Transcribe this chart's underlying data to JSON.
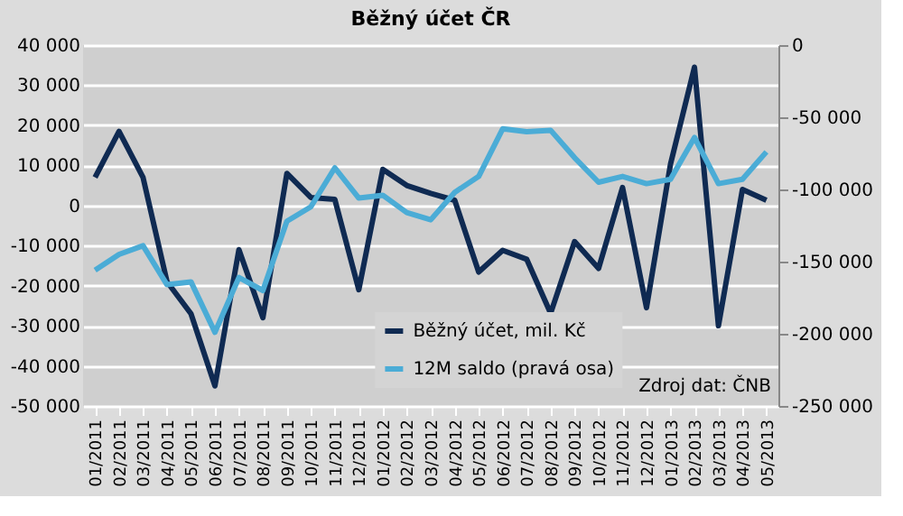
{
  "chart_data": {
    "type": "line",
    "title": "Běžný účet ČR",
    "categories": [
      "01/2011",
      "02/2011",
      "03/2011",
      "04/2011",
      "05/2011",
      "06/2011",
      "07/2011",
      "08/2011",
      "09/2011",
      "10/2011",
      "11/2011",
      "12/2011",
      "01/2012",
      "02/2012",
      "03/2012",
      "04/2012",
      "05/2012",
      "06/2012",
      "07/2012",
      "08/2012",
      "09/2012",
      "10/2012",
      "11/2012",
      "12/2012",
      "01/2013",
      "02/2013",
      "03/2013",
      "04/2013",
      "05/2013"
    ],
    "series": [
      {
        "name": "Běžný účet, mil. Kč",
        "color": "#0f2a52",
        "values": [
          7000,
          18500,
          7000,
          -19000,
          -27000,
          -45000,
          -11000,
          -28000,
          8000,
          2000,
          1500,
          -21000,
          9000,
          5000,
          3000,
          1300,
          -16600,
          -11200,
          -13400,
          -26900,
          -9000,
          -15700,
          4500,
          -25500,
          10300,
          34500,
          -30000,
          4000,
          1300
        ]
      },
      {
        "name": "12M saldo (pravá osa)",
        "color": "#4bacd6",
        "axis": "y2",
        "values": [
          -156000,
          -145000,
          -139000,
          -166000,
          -164000,
          -199000,
          -161000,
          -170000,
          -122000,
          -112000,
          -85000,
          -106000,
          -104000,
          -116000,
          -121000,
          -102000,
          -91000,
          -58000,
          -60000,
          -59000,
          -78000,
          -95000,
          -91000,
          -96000,
          -93000,
          -64000,
          -96000,
          -93000,
          -74000
        ]
      }
    ],
    "ylim": [
      -50000,
      40000
    ],
    "yticks": [
      {
        "value": -50000,
        "label": "-50 000"
      },
      {
        "value": -40000,
        "label": "-40 000"
      },
      {
        "value": -30000,
        "label": "-30 000"
      },
      {
        "value": -20000,
        "label": "-20 000"
      },
      {
        "value": -10000,
        "label": "-10 000"
      },
      0,
      {
        "value": 10000,
        "label": "10 000"
      },
      {
        "value": 20000,
        "label": "20 000"
      },
      {
        "value": 30000,
        "label": "30 000"
      },
      {
        "value": 40000,
        "label": "40 000"
      }
    ],
    "y2lim": [
      -250000,
      0
    ],
    "y2ticks": [
      {
        "value": -250000,
        "label": "-250 000"
      },
      {
        "value": -200000,
        "label": "-200 000"
      },
      {
        "value": -150000,
        "label": "-150 000"
      },
      {
        "value": -100000,
        "label": "-100 000"
      },
      {
        "value": -50000,
        "label": "-50 000"
      },
      0
    ],
    "grid": "y",
    "legend": "bottom right",
    "marker": "none",
    "line_style": "solid",
    "annotations": [
      "Zdroj dat: ČNB"
    ]
  }
}
